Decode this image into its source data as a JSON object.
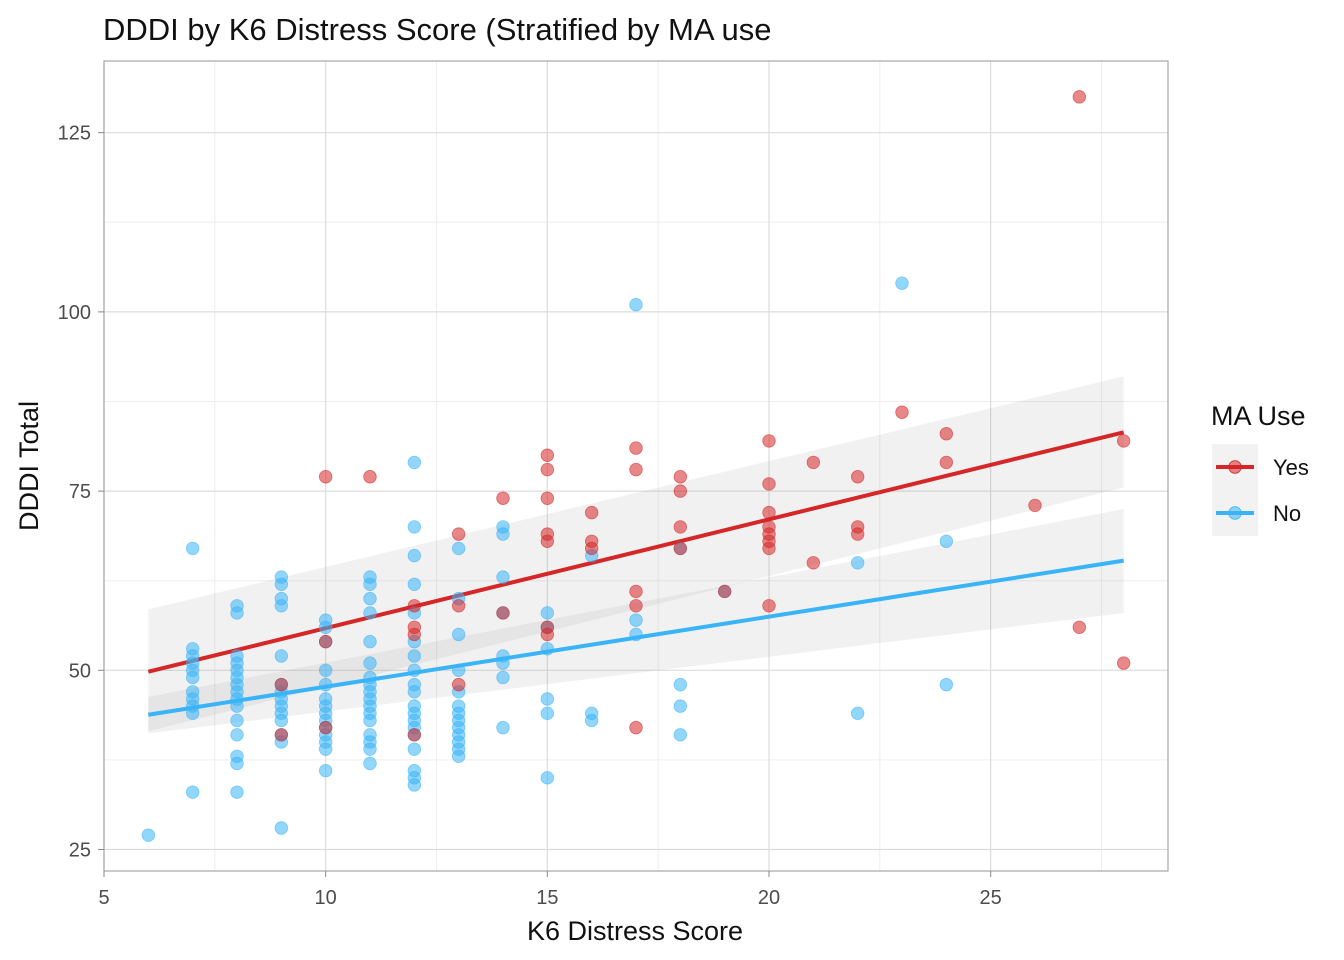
{
  "chart_data": {
    "type": "scatter",
    "title": "DDDI by K6 Distress Score (Stratified by MA use",
    "xlabel": "K6 Distress Score",
    "ylabel": "DDDI Total",
    "xlim": [
      5,
      29
    ],
    "ylim": [
      22,
      135
    ],
    "x_ticks": [
      5,
      10,
      15,
      20,
      25
    ],
    "y_ticks": [
      25,
      50,
      75,
      100,
      125
    ],
    "grid": true,
    "legend": {
      "title": "MA Use",
      "position": "right"
    },
    "series": [
      {
        "name": "Yes",
        "color": "#d62728",
        "trend": {
          "x": [
            6,
            28
          ],
          "y": [
            49.8,
            83.2
          ]
        },
        "ci": {
          "lower": [
            41.5,
            75.5
          ],
          "upper": [
            58.5,
            91.0
          ]
        },
        "points": [
          [
            9,
            48
          ],
          [
            9,
            41
          ],
          [
            10,
            77
          ],
          [
            10,
            54
          ],
          [
            10,
            42
          ],
          [
            11,
            77
          ],
          [
            12,
            59
          ],
          [
            12,
            56
          ],
          [
            12,
            55
          ],
          [
            12,
            41
          ],
          [
            13,
            69
          ],
          [
            13,
            59
          ],
          [
            13,
            48
          ],
          [
            14,
            74
          ],
          [
            14,
            58
          ],
          [
            15,
            80
          ],
          [
            15,
            78
          ],
          [
            15,
            74
          ],
          [
            15,
            69
          ],
          [
            15,
            68
          ],
          [
            15,
            56
          ],
          [
            15,
            55
          ],
          [
            16,
            72
          ],
          [
            16,
            68
          ],
          [
            16,
            67
          ],
          [
            17,
            81
          ],
          [
            17,
            78
          ],
          [
            17,
            61
          ],
          [
            17,
            59
          ],
          [
            17,
            42
          ],
          [
            18,
            77
          ],
          [
            18,
            75
          ],
          [
            18,
            70
          ],
          [
            18,
            67
          ],
          [
            19,
            61
          ],
          [
            20,
            82
          ],
          [
            20,
            76
          ],
          [
            20,
            72
          ],
          [
            20,
            70
          ],
          [
            20,
            69
          ],
          [
            20,
            68
          ],
          [
            20,
            67
          ],
          [
            20,
            59
          ],
          [
            21,
            79
          ],
          [
            21,
            65
          ],
          [
            22,
            77
          ],
          [
            22,
            70
          ],
          [
            22,
            69
          ],
          [
            23,
            86
          ],
          [
            24,
            83
          ],
          [
            24,
            79
          ],
          [
            26,
            73
          ],
          [
            27,
            130
          ],
          [
            27,
            56
          ],
          [
            28,
            82
          ],
          [
            28,
            51
          ]
        ]
      },
      {
        "name": "No",
        "color": "#3ab4f8",
        "trend": {
          "x": [
            6,
            28
          ],
          "y": [
            43.8,
            65.3
          ]
        },
        "ci": {
          "lower": [
            41.2,
            58.0
          ],
          "upper": [
            46.3,
            72.5
          ]
        },
        "points": [
          [
            6,
            27
          ],
          [
            7,
            67
          ],
          [
            7,
            53
          ],
          [
            7,
            52
          ],
          [
            7,
            51
          ],
          [
            7,
            50
          ],
          [
            7,
            49
          ],
          [
            7,
            47
          ],
          [
            7,
            46
          ],
          [
            7,
            45
          ],
          [
            7,
            44
          ],
          [
            7,
            33
          ],
          [
            8,
            59
          ],
          [
            8,
            58
          ],
          [
            8,
            52
          ],
          [
            8,
            51
          ],
          [
            8,
            50
          ],
          [
            8,
            49
          ],
          [
            8,
            48
          ],
          [
            8,
            47
          ],
          [
            8,
            46
          ],
          [
            8,
            45
          ],
          [
            8,
            43
          ],
          [
            8,
            41
          ],
          [
            8,
            38
          ],
          [
            8,
            37
          ],
          [
            8,
            33
          ],
          [
            9,
            63
          ],
          [
            9,
            62
          ],
          [
            9,
            60
          ],
          [
            9,
            59
          ],
          [
            9,
            52
          ],
          [
            9,
            48
          ],
          [
            9,
            47
          ],
          [
            9,
            46
          ],
          [
            9,
            45
          ],
          [
            9,
            44
          ],
          [
            9,
            43
          ],
          [
            9,
            41
          ],
          [
            9,
            40
          ],
          [
            9,
            28
          ],
          [
            10,
            57
          ],
          [
            10,
            56
          ],
          [
            10,
            54
          ],
          [
            10,
            50
          ],
          [
            10,
            48
          ],
          [
            10,
            46
          ],
          [
            10,
            45
          ],
          [
            10,
            44
          ],
          [
            10,
            43
          ],
          [
            10,
            42
          ],
          [
            10,
            41
          ],
          [
            10,
            40
          ],
          [
            10,
            39
          ],
          [
            10,
            36
          ],
          [
            11,
            63
          ],
          [
            11,
            62
          ],
          [
            11,
            60
          ],
          [
            11,
            58
          ],
          [
            11,
            54
          ],
          [
            11,
            51
          ],
          [
            11,
            49
          ],
          [
            11,
            48
          ],
          [
            11,
            47
          ],
          [
            11,
            46
          ],
          [
            11,
            45
          ],
          [
            11,
            44
          ],
          [
            11,
            43
          ],
          [
            11,
            41
          ],
          [
            11,
            40
          ],
          [
            11,
            39
          ],
          [
            11,
            37
          ],
          [
            12,
            79
          ],
          [
            12,
            70
          ],
          [
            12,
            66
          ],
          [
            12,
            62
          ],
          [
            12,
            58
          ],
          [
            12,
            54
          ],
          [
            12,
            52
          ],
          [
            12,
            50
          ],
          [
            12,
            48
          ],
          [
            12,
            47
          ],
          [
            12,
            45
          ],
          [
            12,
            44
          ],
          [
            12,
            43
          ],
          [
            12,
            42
          ],
          [
            12,
            41
          ],
          [
            12,
            39
          ],
          [
            12,
            36
          ],
          [
            12,
            35
          ],
          [
            12,
            34
          ],
          [
            13,
            67
          ],
          [
            13,
            60
          ],
          [
            13,
            55
          ],
          [
            13,
            50
          ],
          [
            13,
            47
          ],
          [
            13,
            45
          ],
          [
            13,
            44
          ],
          [
            13,
            43
          ],
          [
            13,
            42
          ],
          [
            13,
            41
          ],
          [
            13,
            40
          ],
          [
            13,
            39
          ],
          [
            13,
            38
          ],
          [
            14,
            70
          ],
          [
            14,
            69
          ],
          [
            14,
            63
          ],
          [
            14,
            58
          ],
          [
            14,
            52
          ],
          [
            14,
            51
          ],
          [
            14,
            49
          ],
          [
            14,
            42
          ],
          [
            15,
            58
          ],
          [
            15,
            56
          ],
          [
            15,
            53
          ],
          [
            15,
            46
          ],
          [
            15,
            44
          ],
          [
            15,
            35
          ],
          [
            16,
            66
          ],
          [
            16,
            44
          ],
          [
            16,
            43
          ],
          [
            17,
            101
          ],
          [
            17,
            57
          ],
          [
            17,
            55
          ],
          [
            18,
            67
          ],
          [
            18,
            48
          ],
          [
            18,
            45
          ],
          [
            18,
            41
          ],
          [
            19,
            61
          ],
          [
            22,
            65
          ],
          [
            22,
            44
          ],
          [
            23,
            104
          ],
          [
            24,
            68
          ],
          [
            24,
            48
          ]
        ]
      }
    ]
  }
}
